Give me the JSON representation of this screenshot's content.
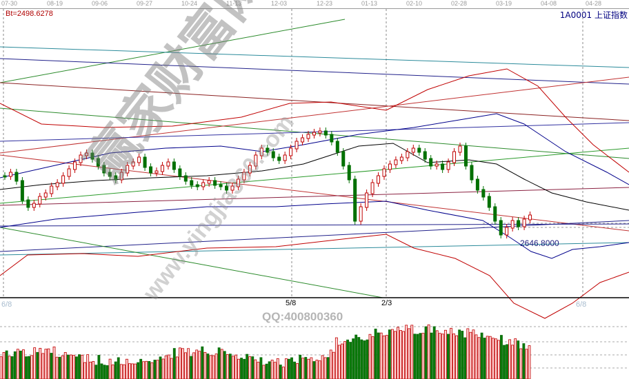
{
  "header": {
    "dates": [
      "07-30",
      "08-19",
      "09-06",
      "09-27",
      "10-24",
      "11-13",
      "12-03",
      "12-23",
      "01-13",
      "02-10",
      "02-28",
      "03-19",
      "04-08",
      "04-28"
    ],
    "bt_label": "Bt=2498.6278",
    "symbol": "1A0001  上证指数"
  },
  "chart": {
    "low_label": "2646.8000",
    "markers": [
      "6/8",
      "5/8",
      "2/3",
      "6/8"
    ],
    "colors": {
      "up": "#c00000",
      "down": "#007000",
      "axis": "#000000",
      "ma_black": "#000000",
      "ma_blue": "#00008b",
      "band": "#c00000"
    }
  },
  "watermark": {
    "brand": "赢家财富网",
    "url": "www.yingjia360.com",
    "qq": "QQ:400800360"
  }
}
